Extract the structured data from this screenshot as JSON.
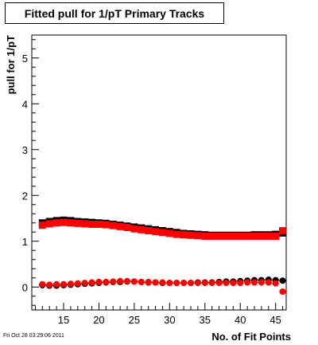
{
  "chart_data": {
    "type": "scatter",
    "title": "Fitted pull for 1/pT Primary Tracks",
    "xlabel": "No. of Fit Points",
    "ylabel": "pull for 1/pT",
    "xlim": [
      10.5,
      46.5
    ],
    "ylim": [
      -0.5,
      5.5
    ],
    "xticks": [
      15,
      20,
      25,
      30,
      35,
      40,
      45
    ],
    "yticks": [
      0,
      1,
      2,
      3,
      4,
      5
    ],
    "grid": false,
    "legend": "none",
    "series": [
      {
        "marker": "square",
        "color": "#000000",
        "x": [
          12,
          13,
          14,
          15,
          16,
          17,
          18,
          19,
          20,
          21,
          22,
          23,
          24,
          25,
          26,
          27,
          28,
          29,
          30,
          31,
          32,
          33,
          34,
          35,
          36,
          37,
          38,
          39,
          40,
          41,
          42,
          43,
          44,
          45,
          46
        ],
        "y": [
          1.4,
          1.43,
          1.45,
          1.46,
          1.45,
          1.43,
          1.42,
          1.41,
          1.4,
          1.39,
          1.37,
          1.35,
          1.33,
          1.31,
          1.29,
          1.27,
          1.25,
          1.23,
          1.21,
          1.19,
          1.17,
          1.16,
          1.15,
          1.14,
          1.13,
          1.13,
          1.13,
          1.13,
          1.13,
          1.13,
          1.14,
          1.14,
          1.14,
          1.15,
          1.18
        ]
      },
      {
        "marker": "square",
        "color": "#ff0000",
        "x": [
          12,
          13,
          14,
          15,
          16,
          17,
          18,
          19,
          20,
          21,
          22,
          23,
          24,
          25,
          26,
          27,
          28,
          29,
          30,
          31,
          32,
          33,
          34,
          35,
          36,
          37,
          38,
          39,
          40,
          41,
          42,
          43,
          44,
          45,
          46
        ],
        "y": [
          1.35,
          1.38,
          1.4,
          1.41,
          1.4,
          1.39,
          1.38,
          1.37,
          1.37,
          1.36,
          1.34,
          1.32,
          1.3,
          1.27,
          1.25,
          1.23,
          1.21,
          1.19,
          1.17,
          1.15,
          1.14,
          1.13,
          1.12,
          1.11,
          1.11,
          1.11,
          1.11,
          1.11,
          1.11,
          1.11,
          1.11,
          1.11,
          1.11,
          1.11,
          1.23
        ]
      },
      {
        "marker": "circle",
        "color": "#000000",
        "x": [
          12,
          13,
          14,
          15,
          16,
          17,
          18,
          19,
          20,
          21,
          22,
          23,
          24,
          25,
          26,
          27,
          28,
          29,
          30,
          31,
          32,
          33,
          34,
          35,
          36,
          37,
          38,
          39,
          40,
          41,
          42,
          43,
          44,
          45,
          46
        ],
        "y": [
          0.04,
          0.03,
          0.03,
          0.04,
          0.05,
          0.06,
          0.07,
          0.08,
          0.09,
          0.1,
          0.11,
          0.11,
          0.12,
          0.12,
          0.11,
          0.1,
          0.1,
          0.09,
          0.09,
          0.09,
          0.09,
          0.09,
          0.1,
          0.1,
          0.1,
          0.11,
          0.12,
          0.12,
          0.13,
          0.14,
          0.15,
          0.15,
          0.16,
          0.15,
          0.14
        ]
      },
      {
        "marker": "circle",
        "color": "#ff0000",
        "x": [
          12,
          13,
          14,
          15,
          16,
          17,
          18,
          19,
          20,
          21,
          22,
          23,
          24,
          25,
          26,
          27,
          28,
          29,
          30,
          31,
          32,
          33,
          34,
          35,
          36,
          37,
          38,
          39,
          40,
          41,
          42,
          43,
          44,
          45,
          46
        ],
        "y": [
          0.06,
          0.05,
          0.06,
          0.06,
          0.07,
          0.08,
          0.09,
          0.1,
          0.11,
          0.11,
          0.12,
          0.13,
          0.13,
          0.12,
          0.11,
          0.11,
          0.1,
          0.1,
          0.09,
          0.09,
          0.09,
          0.09,
          0.09,
          0.09,
          0.09,
          0.09,
          0.09,
          0.09,
          0.09,
          0.1,
          0.1,
          0.1,
          0.1,
          0.08,
          -0.1
        ]
      }
    ]
  },
  "footer": {
    "timestamp": "Fri Oct 28 03:29:06 2011"
  }
}
